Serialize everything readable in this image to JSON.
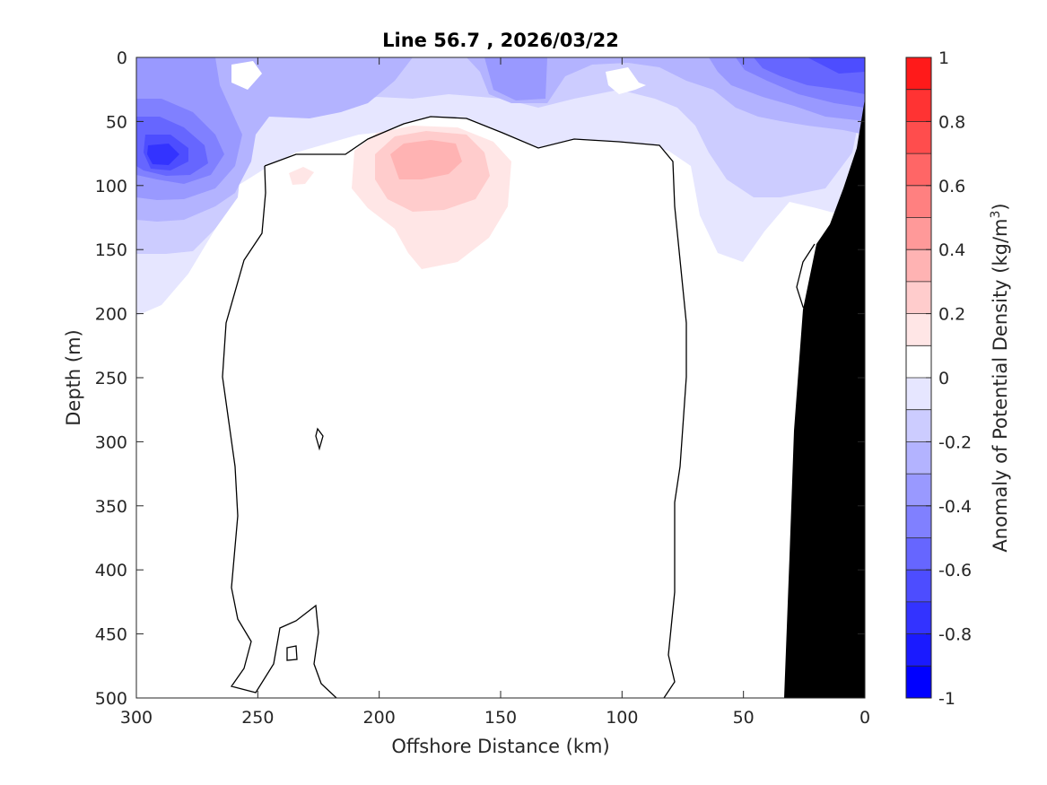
{
  "chart_data": {
    "type": "contourf",
    "title": "Line 56.7 , 2026/03/22",
    "xlabel": "Offshore Distance (km)",
    "ylabel": "Depth (m)",
    "xlim": [
      300,
      0
    ],
    "ylim": [
      0,
      500
    ],
    "x_reversed": true,
    "y_reversed": true,
    "x_ticks": [
      300,
      250,
      200,
      150,
      100,
      50,
      0
    ],
    "y_ticks": [
      0,
      50,
      100,
      150,
      200,
      250,
      300,
      350,
      400,
      450,
      500
    ],
    "colorbar": {
      "label_main": "Anomaly of Potential Density (kg/m",
      "label_sup": "3",
      "label_end": ")",
      "range": [
        -1,
        1
      ],
      "levels": [
        -1,
        -0.9,
        -0.8,
        -0.7,
        -0.6,
        -0.5,
        -0.4,
        -0.3,
        -0.2,
        -0.1,
        0,
        0.1,
        0.2,
        0.3,
        0.4,
        0.5,
        0.6,
        0.7,
        0.8,
        0.9,
        1
      ],
      "colors": [
        "#0000ff",
        "#1a1aff",
        "#3333ff",
        "#4d4dff",
        "#6666ff",
        "#8080ff",
        "#9999ff",
        "#b3b3ff",
        "#ccccff",
        "#e6e6ff",
        "#ffffff",
        "#ffe6e6",
        "#ffcccc",
        "#ffb3b3",
        "#ff9999",
        "#ff8080",
        "#ff6666",
        "#ff4d4d",
        "#ff3333",
        "#ff1a1a"
      ],
      "tick_values": [
        1,
        0.8,
        0.6,
        0.4,
        0.2,
        0,
        -0.2,
        -0.4,
        -0.6,
        -0.8,
        -1
      ],
      "tick_labels": [
        "1",
        "0.8",
        "0.6",
        "0.4",
        "0.2",
        "0",
        "-0.2",
        "-0.4",
        "-0.6",
        "-0.8",
        "-1"
      ]
    },
    "features": {
      "surface_negative_anomaly": {
        "range_m": [
          0,
          200
        ],
        "min_value": -0.8,
        "core": {
          "x_km": 290,
          "depth_m": 75
        }
      },
      "positive_anomaly_eddy": {
        "center": {
          "x_km": 180,
          "depth_m": 80
        },
        "max_value": 0.3,
        "depth_range_m": [
          50,
          165
        ]
      },
      "zero_contour_region": {
        "x_range_km": [
          260,
          80
        ],
        "depth_range_m": [
          50,
          500
        ]
      },
      "bathymetry_shelf": {
        "top_depth_m": 35,
        "at_x_km": 0
      }
    }
  }
}
